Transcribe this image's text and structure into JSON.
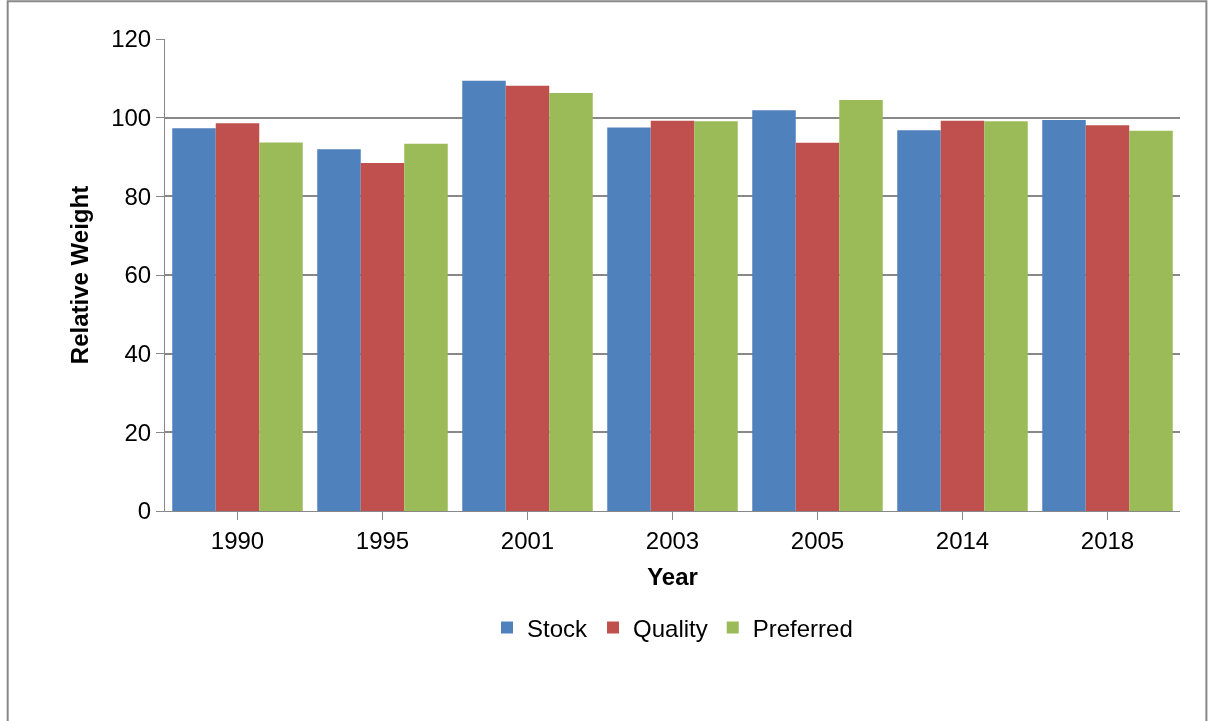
{
  "chart_data": {
    "type": "bar",
    "xlabel": "Year",
    "ylabel": "Relative Weight",
    "categories": [
      "1990",
      "1995",
      "2001",
      "2003",
      "2005",
      "2014",
      "2018"
    ],
    "series": [
      {
        "name": "Stock",
        "color": "#4f81bd",
        "values": [
          97.3,
          92.0,
          109.4,
          97.5,
          101.9,
          96.8,
          99.4
        ]
      },
      {
        "name": "Quality",
        "color": "#c0504d",
        "values": [
          98.6,
          88.5,
          108.1,
          99.2,
          93.6,
          99.2,
          98.1
        ]
      },
      {
        "name": "Preferred",
        "color": "#9bbb59",
        "values": [
          93.7,
          93.4,
          106.3,
          99.1,
          104.5,
          99.1,
          96.7
        ]
      }
    ],
    "ylim": [
      0,
      120
    ],
    "yticks": [
      0,
      20,
      40,
      60,
      80,
      100,
      120
    ],
    "grid": "y",
    "legend": "bottom"
  }
}
